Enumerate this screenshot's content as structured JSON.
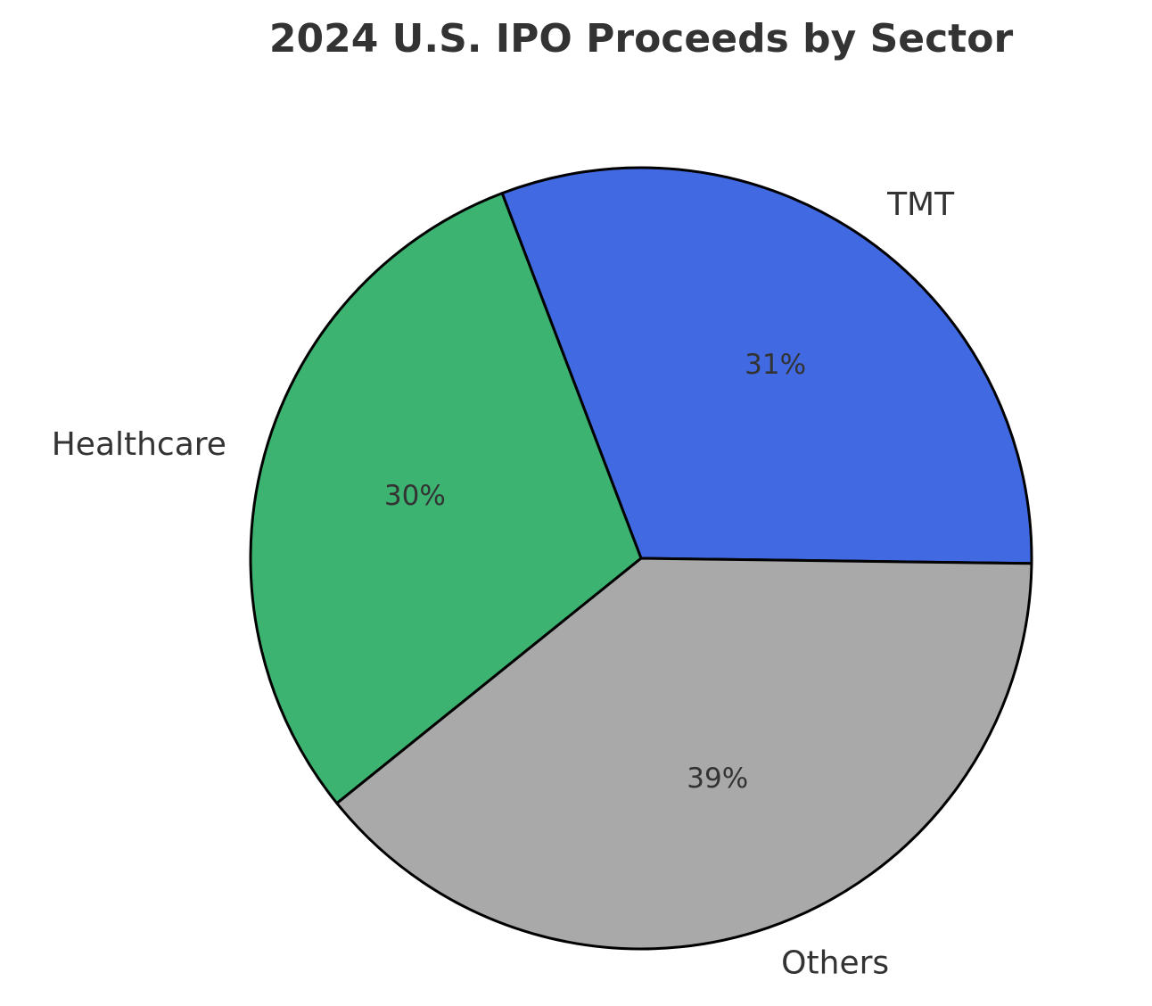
{
  "chart_data": {
    "type": "pie",
    "title": "2024 U.S. IPO Proceeds by Sector",
    "slices": [
      {
        "label": "TMT",
        "value": 31,
        "pct_label": "31%",
        "color": "#4169e1"
      },
      {
        "label": "Healthcare",
        "value": 30,
        "pct_label": "30%",
        "color": "#3cb371"
      },
      {
        "label": "Others",
        "value": 39,
        "pct_label": "39%",
        "color": "#a9a9a9"
      }
    ],
    "legend": "none"
  }
}
